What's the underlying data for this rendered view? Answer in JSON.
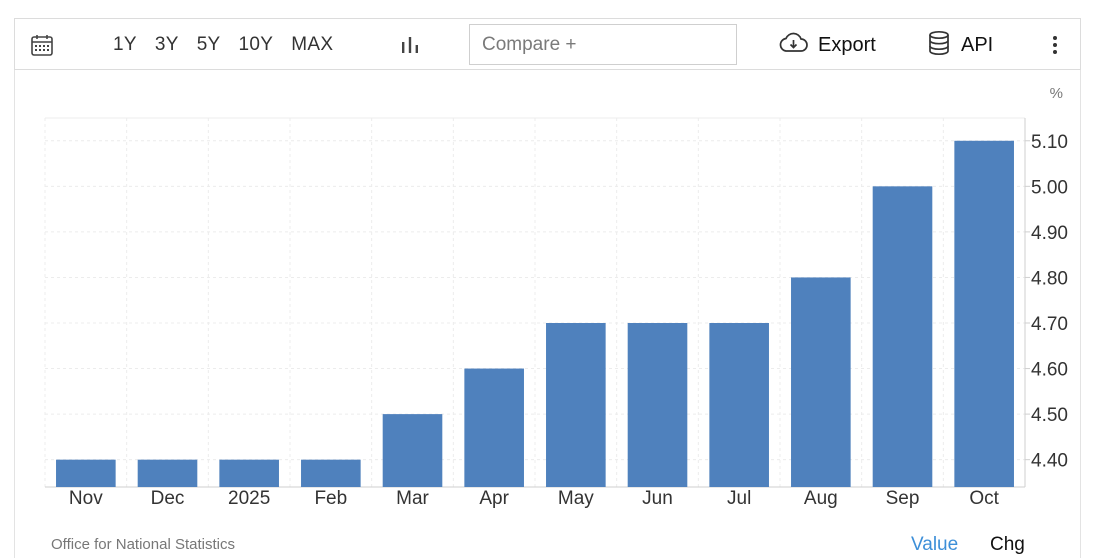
{
  "toolbar": {
    "ranges": [
      "1Y",
      "3Y",
      "5Y",
      "10Y",
      "MAX"
    ],
    "compare_placeholder": "Compare +",
    "export_label": "Export",
    "api_label": "API",
    "icons": {
      "calendar": "calendar-icon",
      "chart_type": "bar-chart-icon",
      "export": "cloud-download-icon",
      "api": "database-icon",
      "more": "more-vertical-icon"
    }
  },
  "chart_data": {
    "type": "bar",
    "unit": "%",
    "categories": [
      "Nov",
      "Dec",
      "2025",
      "Feb",
      "Mar",
      "Apr",
      "May",
      "Jun",
      "Jul",
      "Aug",
      "Sep",
      "Oct"
    ],
    "values": [
      4.4,
      4.4,
      4.4,
      4.4,
      4.5,
      4.6,
      4.7,
      4.7,
      4.7,
      4.8,
      5.0,
      5.1
    ],
    "y_ticks": [
      "4.40",
      "4.50",
      "4.60",
      "4.70",
      "4.80",
      "4.90",
      "5.00",
      "5.10"
    ],
    "ylim": [
      4.34,
      5.15
    ],
    "y_axis_side": "right",
    "bar_color": "#4f81bd",
    "grid": true
  },
  "footer": {
    "source": "Office for National Statistics",
    "value_label": "Value",
    "chg_label": "Chg",
    "active_color": "#3d8fd8"
  }
}
